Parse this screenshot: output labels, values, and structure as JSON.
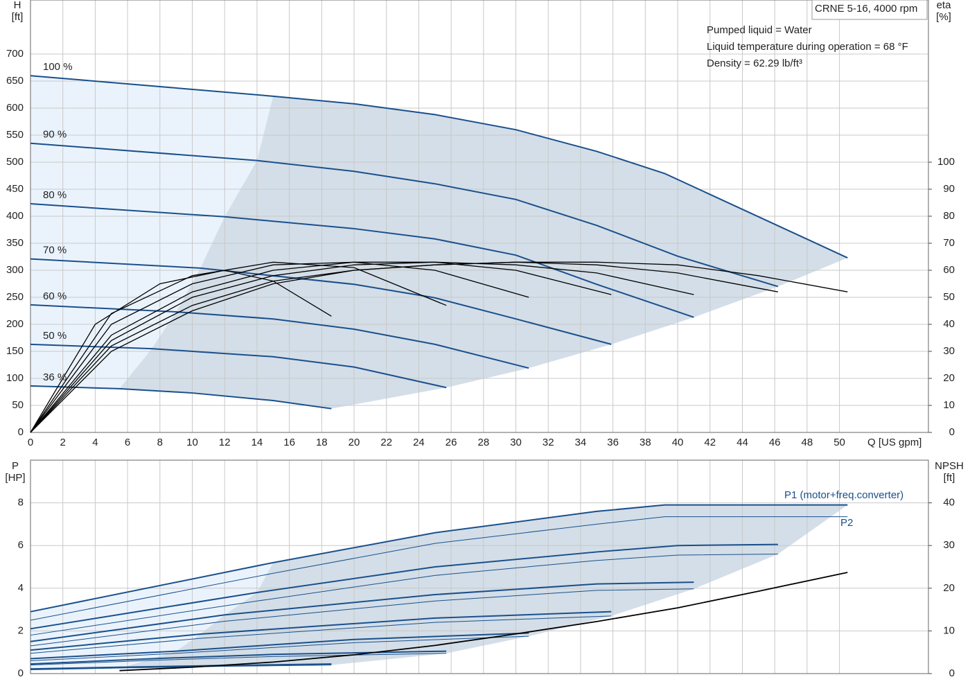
{
  "chart_data": [
    {
      "type": "line",
      "title": "CRNE 5-16, 4000 rpm",
      "annotations": [
        "Pumped liquid = Water",
        "Liquid temperature during operation = 68 °F",
        "Density = 62.29 lb/ft³"
      ],
      "y_label": "H",
      "y_unit": "[ft]",
      "y2_label": "eta",
      "y2_unit": "[%]",
      "x_label": "Q [US gpm]",
      "xlim": [
        0,
        55.5
      ],
      "xticks": [
        0,
        2,
        4,
        6,
        8,
        10,
        12,
        14,
        16,
        18,
        20,
        22,
        24,
        26,
        28,
        30,
        32,
        34,
        36,
        38,
        40,
        42,
        44,
        46,
        48,
        50
      ],
      "ylim": [
        0,
        800
      ],
      "yticks": [
        0,
        50,
        100,
        150,
        200,
        250,
        300,
        350,
        400,
        450,
        500,
        550,
        600,
        650,
        700
      ],
      "y2lim": [
        0,
        160
      ],
      "y2ticks": [
        0,
        10,
        20,
        30,
        40,
        50,
        60,
        70,
        80,
        90,
        100
      ],
      "grid": true,
      "area_colors": [
        "#eaf3fc",
        "#d3dee8"
      ],
      "head": [
        {
          "name": "100 %",
          "color": "#1a4f8b",
          "x": [
            0,
            15,
            20,
            25,
            30,
            35,
            39.2,
            45,
            50.5
          ],
          "values": [
            660,
            622,
            608,
            588,
            560,
            520,
            479,
            399,
            323
          ]
        },
        {
          "name": "90 %",
          "color": "#1a4f8b",
          "x": [
            0,
            14,
            20,
            25,
            30,
            35,
            40,
            46.2
          ],
          "values": [
            535,
            503,
            483,
            460,
            431,
            383,
            326,
            270
          ]
        },
        {
          "name": "80 %",
          "color": "#1a4f8b",
          "x": [
            0,
            12,
            20,
            25,
            30,
            35,
            41
          ],
          "values": [
            423,
            399,
            377,
            358,
            328,
            274,
            213
          ]
        },
        {
          "name": "70 %",
          "color": "#1a4f8b",
          "x": [
            0,
            10.5,
            20,
            25,
            30,
            35.9
          ],
          "values": [
            321,
            304,
            274,
            249,
            210,
            163
          ]
        },
        {
          "name": "60 %",
          "color": "#1a4f8b",
          "x": [
            0,
            9,
            15,
            20,
            25,
            30.8
          ],
          "values": [
            236,
            223,
            210,
            191,
            163,
            119
          ]
        },
        {
          "name": "50 %",
          "color": "#1a4f8b",
          "x": [
            0,
            7.5,
            15,
            20,
            25.7
          ],
          "values": [
            163,
            155,
            140,
            121,
            83
          ]
        },
        {
          "name": "36 %",
          "color": "#1a4f8b",
          "x": [
            0,
            5.5,
            10,
            15,
            18.6
          ],
          "values": [
            86,
            81,
            73,
            59,
            44
          ]
        }
      ],
      "eta": [
        {
          "axis": "y2",
          "color": "#000000",
          "x": [
            0,
            5,
            10,
            15,
            20,
            25,
            30,
            35,
            40,
            45,
            50.5
          ],
          "values": [
            0,
            30,
            45,
            55,
            60,
            62,
            63,
            63,
            62,
            58,
            52
          ]
        },
        {
          "axis": "y2",
          "color": "#000000",
          "x": [
            0,
            5,
            10,
            15,
            20,
            25,
            30,
            35,
            40,
            46.2
          ],
          "values": [
            0,
            32,
            47,
            56,
            60,
            62,
            63,
            62,
            59,
            52
          ]
        },
        {
          "axis": "y2",
          "color": "#000000",
          "x": [
            0,
            5,
            10,
            15,
            20,
            25,
            30,
            35,
            41
          ],
          "values": [
            0,
            34,
            50,
            58,
            62,
            63,
            62,
            59,
            51
          ]
        },
        {
          "axis": "y2",
          "color": "#000000",
          "x": [
            0,
            5,
            10,
            15,
            20,
            25,
            30,
            35.9
          ],
          "values": [
            0,
            36,
            52,
            60,
            63,
            63,
            60,
            51
          ]
        },
        {
          "axis": "y2",
          "color": "#000000",
          "x": [
            0,
            5,
            10,
            15,
            20,
            25,
            30.8
          ],
          "values": [
            0,
            40,
            55,
            62,
            63,
            60,
            50
          ]
        },
        {
          "axis": "y2",
          "color": "#000000",
          "x": [
            0,
            5,
            10,
            15,
            20,
            25.7
          ],
          "values": [
            0,
            44,
            58,
            63,
            61,
            47
          ]
        },
        {
          "axis": "y2",
          "color": "#000000",
          "x": [
            0,
            4,
            8,
            12,
            15,
            18.6
          ],
          "values": [
            0,
            40,
            55,
            60,
            56,
            43
          ]
        }
      ]
    },
    {
      "type": "line",
      "annotations": [
        "P1 (motor+freq.converter)",
        "P2"
      ],
      "y_label": "P",
      "y_unit": "[HP]",
      "y2_label": "NPSH",
      "y2_unit": "[ft]",
      "xlim": [
        0,
        55.5
      ],
      "xticks": [
        0,
        2,
        4,
        6,
        8,
        10,
        12,
        14,
        16,
        18,
        20,
        22,
        24,
        26,
        28,
        30,
        32,
        34,
        36,
        38,
        40,
        42,
        44,
        46,
        48,
        50
      ],
      "ylim": [
        0,
        10
      ],
      "yticks": [
        0,
        2,
        4,
        6,
        8
      ],
      "y2lim": [
        0,
        50
      ],
      "y2ticks": [
        0,
        10,
        20,
        30,
        40
      ],
      "grid": true,
      "area_colors": [
        "#eaf3fc",
        "#d3dee8"
      ],
      "p1": [
        {
          "color": "#1a4f8b",
          "x": [
            0,
            15,
            25,
            35,
            39.2,
            50.5
          ],
          "values": [
            2.9,
            5.2,
            6.6,
            7.6,
            7.9,
            7.9
          ]
        },
        {
          "color": "#1a4f8b",
          "x": [
            0,
            14,
            25,
            35,
            40,
            46.2
          ],
          "values": [
            2.1,
            3.8,
            5.0,
            5.7,
            6.0,
            6.05
          ]
        },
        {
          "color": "#1a4f8b",
          "x": [
            0,
            12,
            25,
            35,
            41
          ],
          "values": [
            1.5,
            2.75,
            3.7,
            4.2,
            4.28
          ]
        },
        {
          "color": "#1a4f8b",
          "x": [
            0,
            10.5,
            25,
            35.9
          ],
          "values": [
            1.1,
            1.85,
            2.6,
            2.9
          ]
        },
        {
          "color": "#1a4f8b",
          "x": [
            0,
            9,
            20,
            30.8
          ],
          "values": [
            0.7,
            1.05,
            1.6,
            1.9
          ]
        },
        {
          "color": "#1a4f8b",
          "x": [
            0,
            7.5,
            15,
            25.7
          ],
          "values": [
            0.45,
            0.7,
            0.9,
            1.05
          ]
        },
        {
          "color": "#1a4f8b",
          "x": [
            0,
            5.5,
            12,
            18.6
          ],
          "values": [
            0.22,
            0.3,
            0.38,
            0.45
          ]
        }
      ],
      "p2": [
        {
          "color": "#1a4f8b",
          "x": [
            0,
            15,
            25,
            35,
            39.2,
            50.5
          ],
          "values": [
            2.5,
            4.7,
            6.1,
            7.0,
            7.35,
            7.35
          ]
        },
        {
          "color": "#1a4f8b",
          "x": [
            0,
            14,
            25,
            35,
            40,
            46.2
          ],
          "values": [
            1.8,
            3.4,
            4.6,
            5.3,
            5.55,
            5.6
          ]
        },
        {
          "color": "#1a4f8b",
          "x": [
            0,
            12,
            25,
            35,
            41
          ],
          "values": [
            1.3,
            2.45,
            3.4,
            3.9,
            3.97
          ]
        },
        {
          "color": "#1a4f8b",
          "x": [
            0,
            10.5,
            25,
            35.9
          ],
          "values": [
            0.95,
            1.65,
            2.4,
            2.7
          ]
        },
        {
          "color": "#1a4f8b",
          "x": [
            0,
            9,
            20,
            30.8
          ],
          "values": [
            0.6,
            0.95,
            1.45,
            1.75
          ]
        },
        {
          "color": "#1a4f8b",
          "x": [
            0,
            7.5,
            15,
            25.7
          ],
          "values": [
            0.4,
            0.62,
            0.8,
            0.95
          ]
        },
        {
          "color": "#1a4f8b",
          "x": [
            0,
            5.5,
            12,
            18.6
          ],
          "values": [
            0.18,
            0.26,
            0.34,
            0.4
          ]
        }
      ],
      "npsh": [
        {
          "axis": "y2",
          "color": "#000000",
          "x": [
            5.5,
            10,
            15,
            20,
            25,
            30,
            35,
            40,
            45,
            50.5
          ],
          "values": [
            0.7,
            1.5,
            2.7,
            4.4,
            6.6,
            9.3,
            12.2,
            15.4,
            19.3,
            23.7
          ]
        }
      ]
    }
  ]
}
